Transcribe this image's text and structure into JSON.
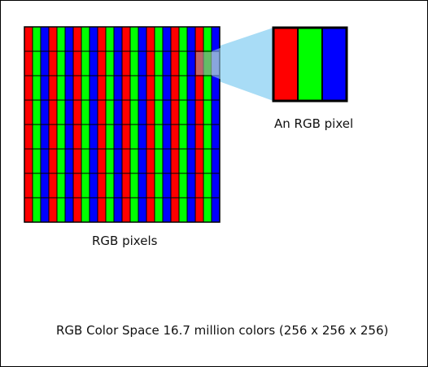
{
  "colors": {
    "red": "#ff0000",
    "green": "#00ff00",
    "blue": "#0000ff",
    "outline": "#000000",
    "zoom_beam": "#a8dcf5",
    "highlight": "#9a9aa0"
  },
  "pixel_grid": {
    "columns": 8,
    "rows": 8,
    "subpixels": [
      "red",
      "green",
      "blue"
    ]
  },
  "labels": {
    "grid_caption": "RGB pixels",
    "pixel_caption": "An RGB pixel",
    "colorspace_caption": "RGB Color Space 16.7 million colors (256 x 256 x 256)"
  }
}
